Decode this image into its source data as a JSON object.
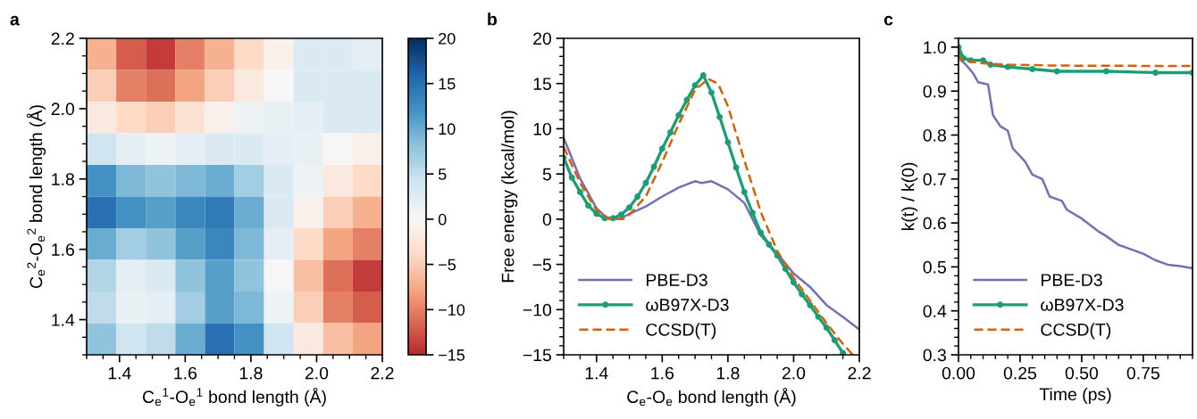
{
  "chart_data": [
    {
      "type": "heatmap",
      "title": "a",
      "xlabel": "C$_{e}$$^{1}$-O$_{e}$$^{1}$ bond length (Å)",
      "ylabel": "C$_{e}$$^{2}$-O$_{e}$$^{2}$ bond length (Å)",
      "x": [
        1.345,
        1.435,
        1.525,
        1.615,
        1.705,
        1.795,
        1.885,
        1.975,
        2.065,
        2.155
      ],
      "y": [
        2.155,
        2.065,
        1.975,
        1.885,
        1.795,
        1.705,
        1.615,
        1.525,
        1.435,
        1.345
      ],
      "cells": [
        [
          -7,
          -12,
          -14,
          -10,
          -7,
          -4,
          -1,
          3,
          3,
          2
        ],
        [
          -5,
          -10,
          -11,
          -8,
          -5,
          -2,
          0,
          3,
          3,
          3
        ],
        [
          -2,
          -4,
          -5,
          -3,
          -1,
          1,
          1.5,
          2,
          3,
          3
        ],
        [
          4,
          2,
          1,
          2,
          3,
          3,
          2,
          1.5,
          0,
          -1
        ],
        [
          12,
          9,
          8,
          9,
          10,
          7,
          3,
          1,
          -2,
          -4
        ],
        [
          15,
          12,
          11,
          13,
          14,
          10,
          3,
          -1,
          -5,
          -7
        ],
        [
          10,
          7,
          8,
          11,
          13,
          9,
          2,
          -4,
          -8,
          -10
        ],
        [
          6,
          2,
          3,
          8,
          11,
          8,
          0,
          -6,
          -11,
          -14
        ],
        [
          5,
          1.5,
          2,
          7,
          11,
          9,
          1,
          -5,
          -10,
          -12
        ],
        [
          8,
          4,
          5,
          10,
          15,
          12,
          4,
          -2,
          -6,
          -8
        ]
      ],
      "xlim": [
        1.3,
        2.2
      ],
      "ylim": [
        1.3,
        2.2
      ],
      "xticks": [
        1.4,
        1.6,
        1.8,
        {
          "value": 2,
          "label": "2.0"
        },
        2.2
      ],
      "yticks": [
        1.4,
        1.6,
        1.8,
        {
          "value": 2,
          "label": "2.0"
        },
        2.2
      ],
      "clim": [
        -15,
        20
      ],
      "cticks": [
        -15,
        -10,
        -5,
        0,
        5,
        10,
        15,
        20
      ]
    },
    {
      "type": "line",
      "title": "b",
      "xlabel": "C$_{e}$-O$_{e}$ bond length (Å)",
      "ylabel": "Free energy (kcal/mol)",
      "xlim": [
        1.3,
        2.2
      ],
      "ylim": [
        -15,
        20
      ],
      "xticks": [
        1.4,
        1.6,
        1.8,
        {
          "value": 2,
          "label": "2.0"
        },
        2.2
      ],
      "yticks": [
        -15,
        -10,
        -5,
        0,
        5,
        10,
        15,
        20
      ],
      "legend": "bottom left",
      "series": [
        {
          "name": "PBE-D3",
          "color": "#7570b3",
          "line_style": "solid",
          "marker": "none",
          "x": [
            1.3,
            1.35,
            1.4,
            1.43,
            1.47,
            1.5,
            1.55,
            1.6,
            1.65,
            1.7,
            1.72,
            1.75,
            1.8,
            1.85,
            1.9,
            1.95,
            2.0,
            2.05,
            2.1,
            2.15,
            2.2
          ],
          "values": [
            9,
            4.5,
            1.2,
            0.2,
            0,
            0.6,
            1.4,
            2.5,
            3.5,
            4.2,
            4,
            4.2,
            3.3,
            1.8,
            -1.8,
            -3.8,
            -6,
            -7.5,
            -9.5,
            -10.8,
            -12.2
          ]
        },
        {
          "name": "ωB97X-D3",
          "color": "#1b9e77",
          "line_style": "solid",
          "marker": "circle",
          "x": [
            1.3,
            1.325,
            1.35,
            1.375,
            1.4,
            1.425,
            1.45,
            1.475,
            1.5,
            1.525,
            1.55,
            1.575,
            1.6,
            1.625,
            1.65,
            1.675,
            1.7,
            1.725,
            1.75,
            1.775,
            1.8,
            1.825,
            1.85,
            1.875,
            1.9,
            1.925,
            1.95,
            1.975,
            2.0,
            2.025,
            2.05,
            2.075,
            2.1,
            2.125,
            2.15
          ],
          "values": [
            6.8,
            4.6,
            3,
            1.5,
            0.6,
            0.1,
            0.1,
            0.5,
            1.3,
            2.5,
            4,
            5.8,
            7.8,
            9.6,
            11.5,
            13.2,
            14.8,
            15.9,
            14,
            11.3,
            8.5,
            5.7,
            3,
            0.7,
            -1.5,
            -2.8,
            -4,
            -5.5,
            -7,
            -8.3,
            -9.5,
            -10.8,
            -12,
            -13.4,
            -14.8
          ]
        },
        {
          "name": "CCSD(T)",
          "color": "#d95f02",
          "line_style": "dashed",
          "marker": "none",
          "x": [
            1.3,
            1.35,
            1.4,
            1.44,
            1.48,
            1.5,
            1.55,
            1.6,
            1.65,
            1.7,
            1.74,
            1.77,
            1.8,
            1.85,
            1.9,
            1.95,
            2.0,
            2.05,
            2.1,
            2.15,
            2.18
          ],
          "values": [
            8,
            4,
            1,
            0,
            0,
            0.5,
            2.5,
            6.3,
            10.5,
            14.3,
            15.5,
            15,
            12.5,
            6.5,
            0.8,
            -3.5,
            -6.5,
            -9,
            -11.5,
            -13.8,
            -15
          ]
        }
      ]
    },
    {
      "type": "line",
      "title": "c",
      "xlabel": "Time (ps)",
      "ylabel": "k(t) / k(0)",
      "xlim": [
        0,
        0.95
      ],
      "ylim": [
        0.3,
        1.02
      ],
      "xticks": [
        {
          "value": 0,
          "label": "0.00"
        },
        0.25,
        {
          "value": 0.5,
          "label": "0.50"
        },
        0.75
      ],
      "yticks": [
        0.3,
        0.4,
        0.5,
        0.6,
        0.7,
        0.8,
        0.9,
        {
          "value": 1,
          "label": "1.0"
        }
      ],
      "legend": "bottom left",
      "series": [
        {
          "name": "PBE-D3",
          "color": "#7570b3",
          "line_style": "solid",
          "marker": "none",
          "x": [
            0,
            0.01,
            0.03,
            0.06,
            0.08,
            0.12,
            0.13,
            0.14,
            0.17,
            0.2,
            0.22,
            0.27,
            0.3,
            0.34,
            0.37,
            0.42,
            0.44,
            0.5,
            0.57,
            0.6,
            0.65,
            0.7,
            0.75,
            0.8,
            0.85,
            0.9,
            0.95
          ],
          "values": [
            1.0,
            0.97,
            0.96,
            0.94,
            0.92,
            0.915,
            0.88,
            0.845,
            0.82,
            0.81,
            0.77,
            0.74,
            0.71,
            0.7,
            0.66,
            0.65,
            0.63,
            0.61,
            0.58,
            0.57,
            0.55,
            0.54,
            0.53,
            0.515,
            0.505,
            0.502,
            0.497
          ]
        },
        {
          "name": "ωB97X-D3",
          "color": "#1b9e77",
          "line_style": "solid",
          "marker": "circle",
          "x": [
            0,
            0.02,
            0.05,
            0.1,
            0.13,
            0.2,
            0.3,
            0.4,
            0.6,
            0.8,
            0.95
          ],
          "values": [
            1.0,
            0.975,
            0.97,
            0.97,
            0.96,
            0.955,
            0.95,
            0.945,
            0.945,
            0.942,
            0.942
          ]
        },
        {
          "name": "CCSD(T)",
          "color": "#d95f02",
          "line_style": "dashed",
          "marker": "none",
          "x": [
            0,
            0.01,
            0.1,
            0.2,
            0.4,
            0.95
          ],
          "values": [
            0.985,
            0.97,
            0.963,
            0.96,
            0.958,
            0.957
          ]
        }
      ]
    }
  ]
}
